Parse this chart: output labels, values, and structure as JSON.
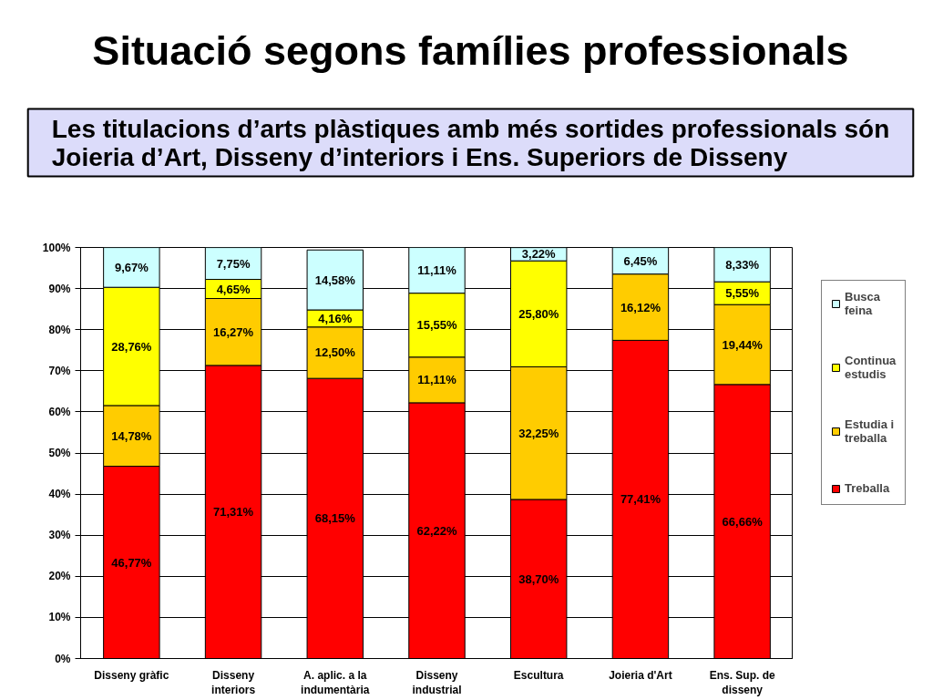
{
  "chart_data": {
    "type": "bar",
    "title": "Situació segons famílies professionals",
    "subtitle": "Les titulacions d’arts plàstiques amb més sortides professionals són Joieria d’Art, Disseny d’interiors i Ens. Superiors de Disseny",
    "categories": [
      "Disseny gràfic",
      "Disseny interiors",
      "A. aplic. a la indumentària",
      "Disseny industrial",
      "Escultura",
      "Joieria d'Art",
      "Ens. Sup. de disseny"
    ],
    "stacked": true,
    "series": [
      {
        "name": "Treballa",
        "color": "#ff0000",
        "values": [
          46.77,
          71.31,
          68.15,
          62.22,
          38.7,
          77.41,
          66.66
        ],
        "value_labels": [
          "46,77%",
          "71,31%",
          "68,15%",
          "62,22%",
          "38,70%",
          "77,41%",
          "66,66%"
        ]
      },
      {
        "name": "Estudia i treballa",
        "color": "#ffcc00",
        "values": [
          14.78,
          16.27,
          12.5,
          11.11,
          32.25,
          16.12,
          19.44
        ],
        "value_labels": [
          "14,78%",
          "16,27%",
          "12,50%",
          "11,11%",
          "32,25%",
          "16,12%",
          "19,44%"
        ]
      },
      {
        "name": "Continua estudis",
        "color": "#ffff00",
        "values": [
          28.76,
          4.65,
          4.16,
          15.55,
          25.8,
          null,
          5.55
        ],
        "value_labels": [
          "28,76%",
          "4,65%",
          "4,16%",
          "15,55%",
          "25,80%",
          null,
          "5,55%"
        ]
      },
      {
        "name": "Busca feina",
        "color": "#ccffff",
        "values": [
          9.67,
          7.75,
          14.58,
          11.11,
          3.22,
          6.45,
          8.33
        ],
        "value_labels": [
          "9,67%",
          "7,75%",
          "14,58%",
          "11,11%",
          "3,22%",
          "6,45%",
          "8,33%"
        ]
      }
    ],
    "ylim": [
      0,
      100
    ],
    "yticks": [
      {
        "value": 0,
        "label": "0%"
      },
      {
        "value": 10,
        "label": "10%"
      },
      {
        "value": 20,
        "label": "20%"
      },
      {
        "value": 30,
        "label": "30%"
      },
      {
        "value": 40,
        "label": "40%"
      },
      {
        "value": 50,
        "label": "50%"
      },
      {
        "value": 60,
        "label": "60%"
      },
      {
        "value": 70,
        "label": "70%"
      },
      {
        "value": 80,
        "label": "80%"
      },
      {
        "value": 90,
        "label": "90%"
      },
      {
        "value": 100,
        "label": "100%"
      }
    ],
    "grid": "y",
    "legend": "right"
  }
}
